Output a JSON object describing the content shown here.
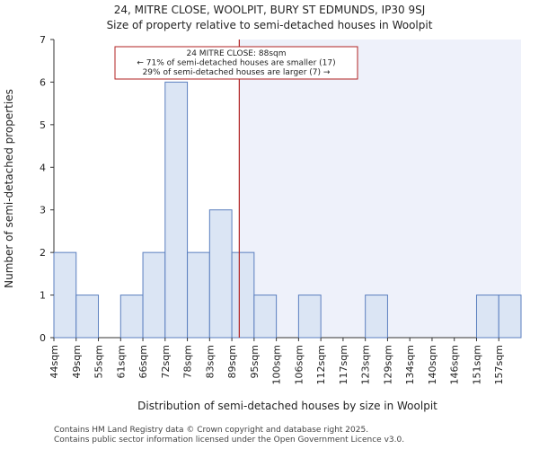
{
  "title_line1": "24, MITRE CLOSE, WOOLPIT, BURY ST EDMUNDS, IP30 9SJ",
  "title_line2": "Size of property relative to semi-detached houses in Woolpit",
  "footer_line1": "Contains HM Land Registry data © Crown copyright and database right 2025.",
  "footer_line2": "Contains public sector information licensed under the Open Government Licence v3.0.",
  "chart_data": {
    "type": "bar",
    "xlabel": "Distribution of semi-detached houses by size in Woolpit",
    "ylabel": "Number of semi-detached properties",
    "ylim": [
      0,
      7
    ],
    "yticks": [
      0,
      1,
      2,
      3,
      4,
      5,
      6,
      7
    ],
    "categories": [
      "44sqm",
      "49sqm",
      "55sqm",
      "61sqm",
      "66sqm",
      "72sqm",
      "78sqm",
      "83sqm",
      "89sqm",
      "95sqm",
      "100sqm",
      "106sqm",
      "112sqm",
      "117sqm",
      "123sqm",
      "129sqm",
      "134sqm",
      "140sqm",
      "146sqm",
      "151sqm",
      "157sqm"
    ],
    "values": [
      2,
      1,
      0,
      1,
      2,
      6,
      2,
      3,
      2,
      1,
      0,
      1,
      0,
      0,
      1,
      0,
      0,
      0,
      0,
      1,
      1
    ],
    "marker_value": 88,
    "marker_color": "#b22222",
    "bar_fill": "#dbe5f4",
    "bar_stroke": "#5b7fbf",
    "highlight_fill": "#eef1fa",
    "annotation": [
      "24 MITRE CLOSE: 88sqm",
      "← 71% of semi-detached houses are smaller (17)",
      "29% of semi-detached houses are larger (7) →"
    ]
  }
}
